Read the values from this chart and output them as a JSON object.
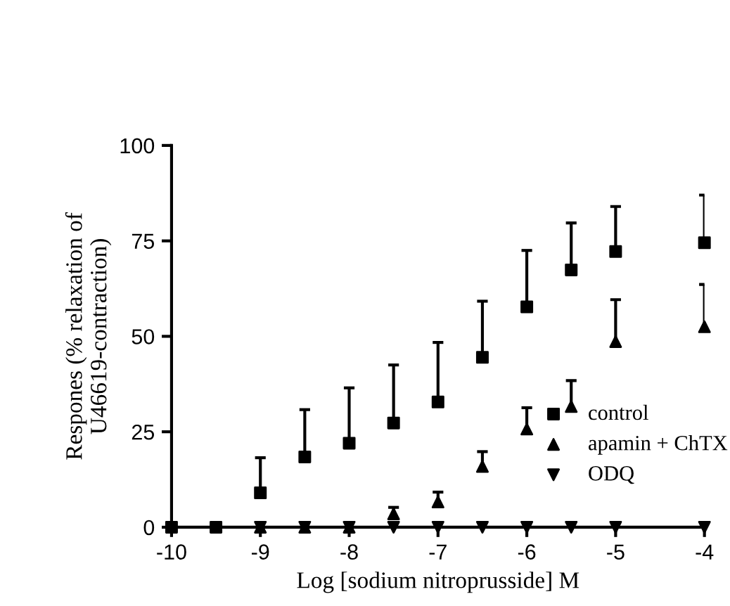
{
  "chart_data": {
    "type": "scatter",
    "xlabel": "Log [sodium nitroprusside] M",
    "ylabel": "Respones (% relaxation of\nU46619-contraction)",
    "xlim": [
      -10,
      -4
    ],
    "ylim": [
      0,
      100
    ],
    "xticks": [
      -10,
      -9,
      -8,
      -7,
      -6,
      -5,
      -4
    ],
    "yticks": [
      0,
      25,
      50,
      75,
      100
    ],
    "grid": false,
    "legend": "bottom right",
    "series": [
      {
        "name": "control",
        "color": "#000000",
        "marker": "square",
        "x": [
          -10,
          -9.5,
          -9,
          -8.5,
          -8,
          -7.5,
          -7,
          -6.5,
          -6,
          -5.5,
          -5,
          -4
        ],
        "values": [
          0,
          0,
          9,
          18.4,
          22,
          27.3,
          32.8,
          44.5,
          57.7,
          67.4,
          72.2,
          74.5
        ],
        "errors": [
          null,
          null,
          [
            9,
            18.2
          ],
          [
            18.4,
            30.8
          ],
          [
            22,
            36.5
          ],
          [
            27.3,
            42.5
          ],
          [
            32.8,
            48.4
          ],
          [
            44.5,
            59.2
          ],
          [
            57.7,
            72.5
          ],
          [
            67.4,
            79.7
          ],
          [
            72.2,
            84
          ],
          [
            74.5,
            87
          ]
        ]
      },
      {
        "name": "apamin + ChTX",
        "color": "#000000",
        "marker": "triangle",
        "x": [
          -9,
          -8.5,
          -8,
          -7.5,
          -7,
          -6.5,
          -6,
          -5.5,
          -5,
          -4
        ],
        "values": [
          0,
          0,
          0,
          3.5,
          6.6,
          15.9,
          25.7,
          31.6,
          48.6,
          52.5
        ],
        "errors": [
          null,
          null,
          null,
          [
            3.5,
            5.2
          ],
          [
            6.6,
            9.2
          ],
          [
            15.9,
            19.8
          ],
          [
            25.7,
            31.3
          ],
          [
            31.6,
            38.4
          ],
          [
            48.6,
            59.6
          ],
          [
            52.5,
            63.6
          ]
        ]
      },
      {
        "name": "ODQ",
        "color": "#000000",
        "marker": "triangle_down",
        "x": [
          -9,
          -8.5,
          -8,
          -7.5,
          -7,
          -6.5,
          -6,
          -5.5,
          -5,
          -4
        ],
        "values": [
          0,
          0,
          0,
          0,
          0,
          0,
          0,
          0,
          0,
          0
        ]
      }
    ]
  }
}
